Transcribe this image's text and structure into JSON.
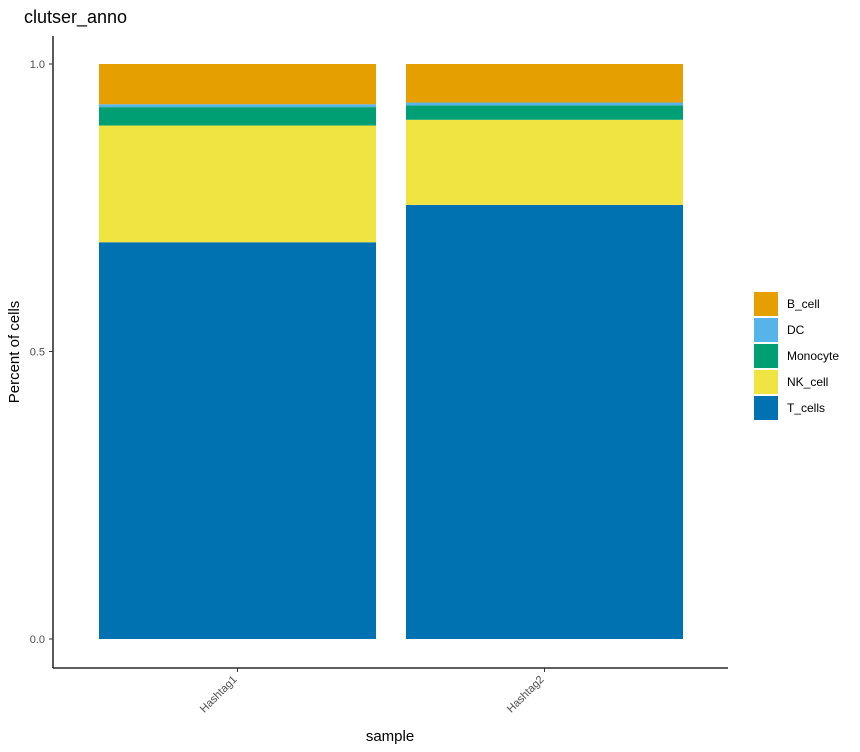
{
  "chart_data": {
    "type": "bar",
    "stacked": true,
    "title": "clutser_anno",
    "xlabel": "sample",
    "ylabel": "Percent of cells",
    "categories": [
      "Hashtag1",
      "Hashtag2"
    ],
    "ylim": [
      0,
      1
    ],
    "yticks": [
      "0.0",
      "0.5",
      "1.0"
    ],
    "series": [
      {
        "name": "T_cells",
        "color": "#0072B2",
        "values": [
          0.69,
          0.755
        ]
      },
      {
        "name": "NK_cell",
        "color": "#F0E442",
        "values": [
          0.203,
          0.148
        ]
      },
      {
        "name": "Monocyte",
        "color": "#009E73",
        "values": [
          0.032,
          0.025
        ]
      },
      {
        "name": "DC",
        "color": "#56B4E9",
        "values": [
          0.005,
          0.005
        ]
      },
      {
        "name": "B_cell",
        "color": "#E69F00",
        "values": [
          0.07,
          0.067
        ]
      }
    ],
    "legend_order": [
      "B_cell",
      "DC",
      "Monocyte",
      "NK_cell",
      "T_cells"
    ],
    "legend_position": "right",
    "grid": false
  }
}
